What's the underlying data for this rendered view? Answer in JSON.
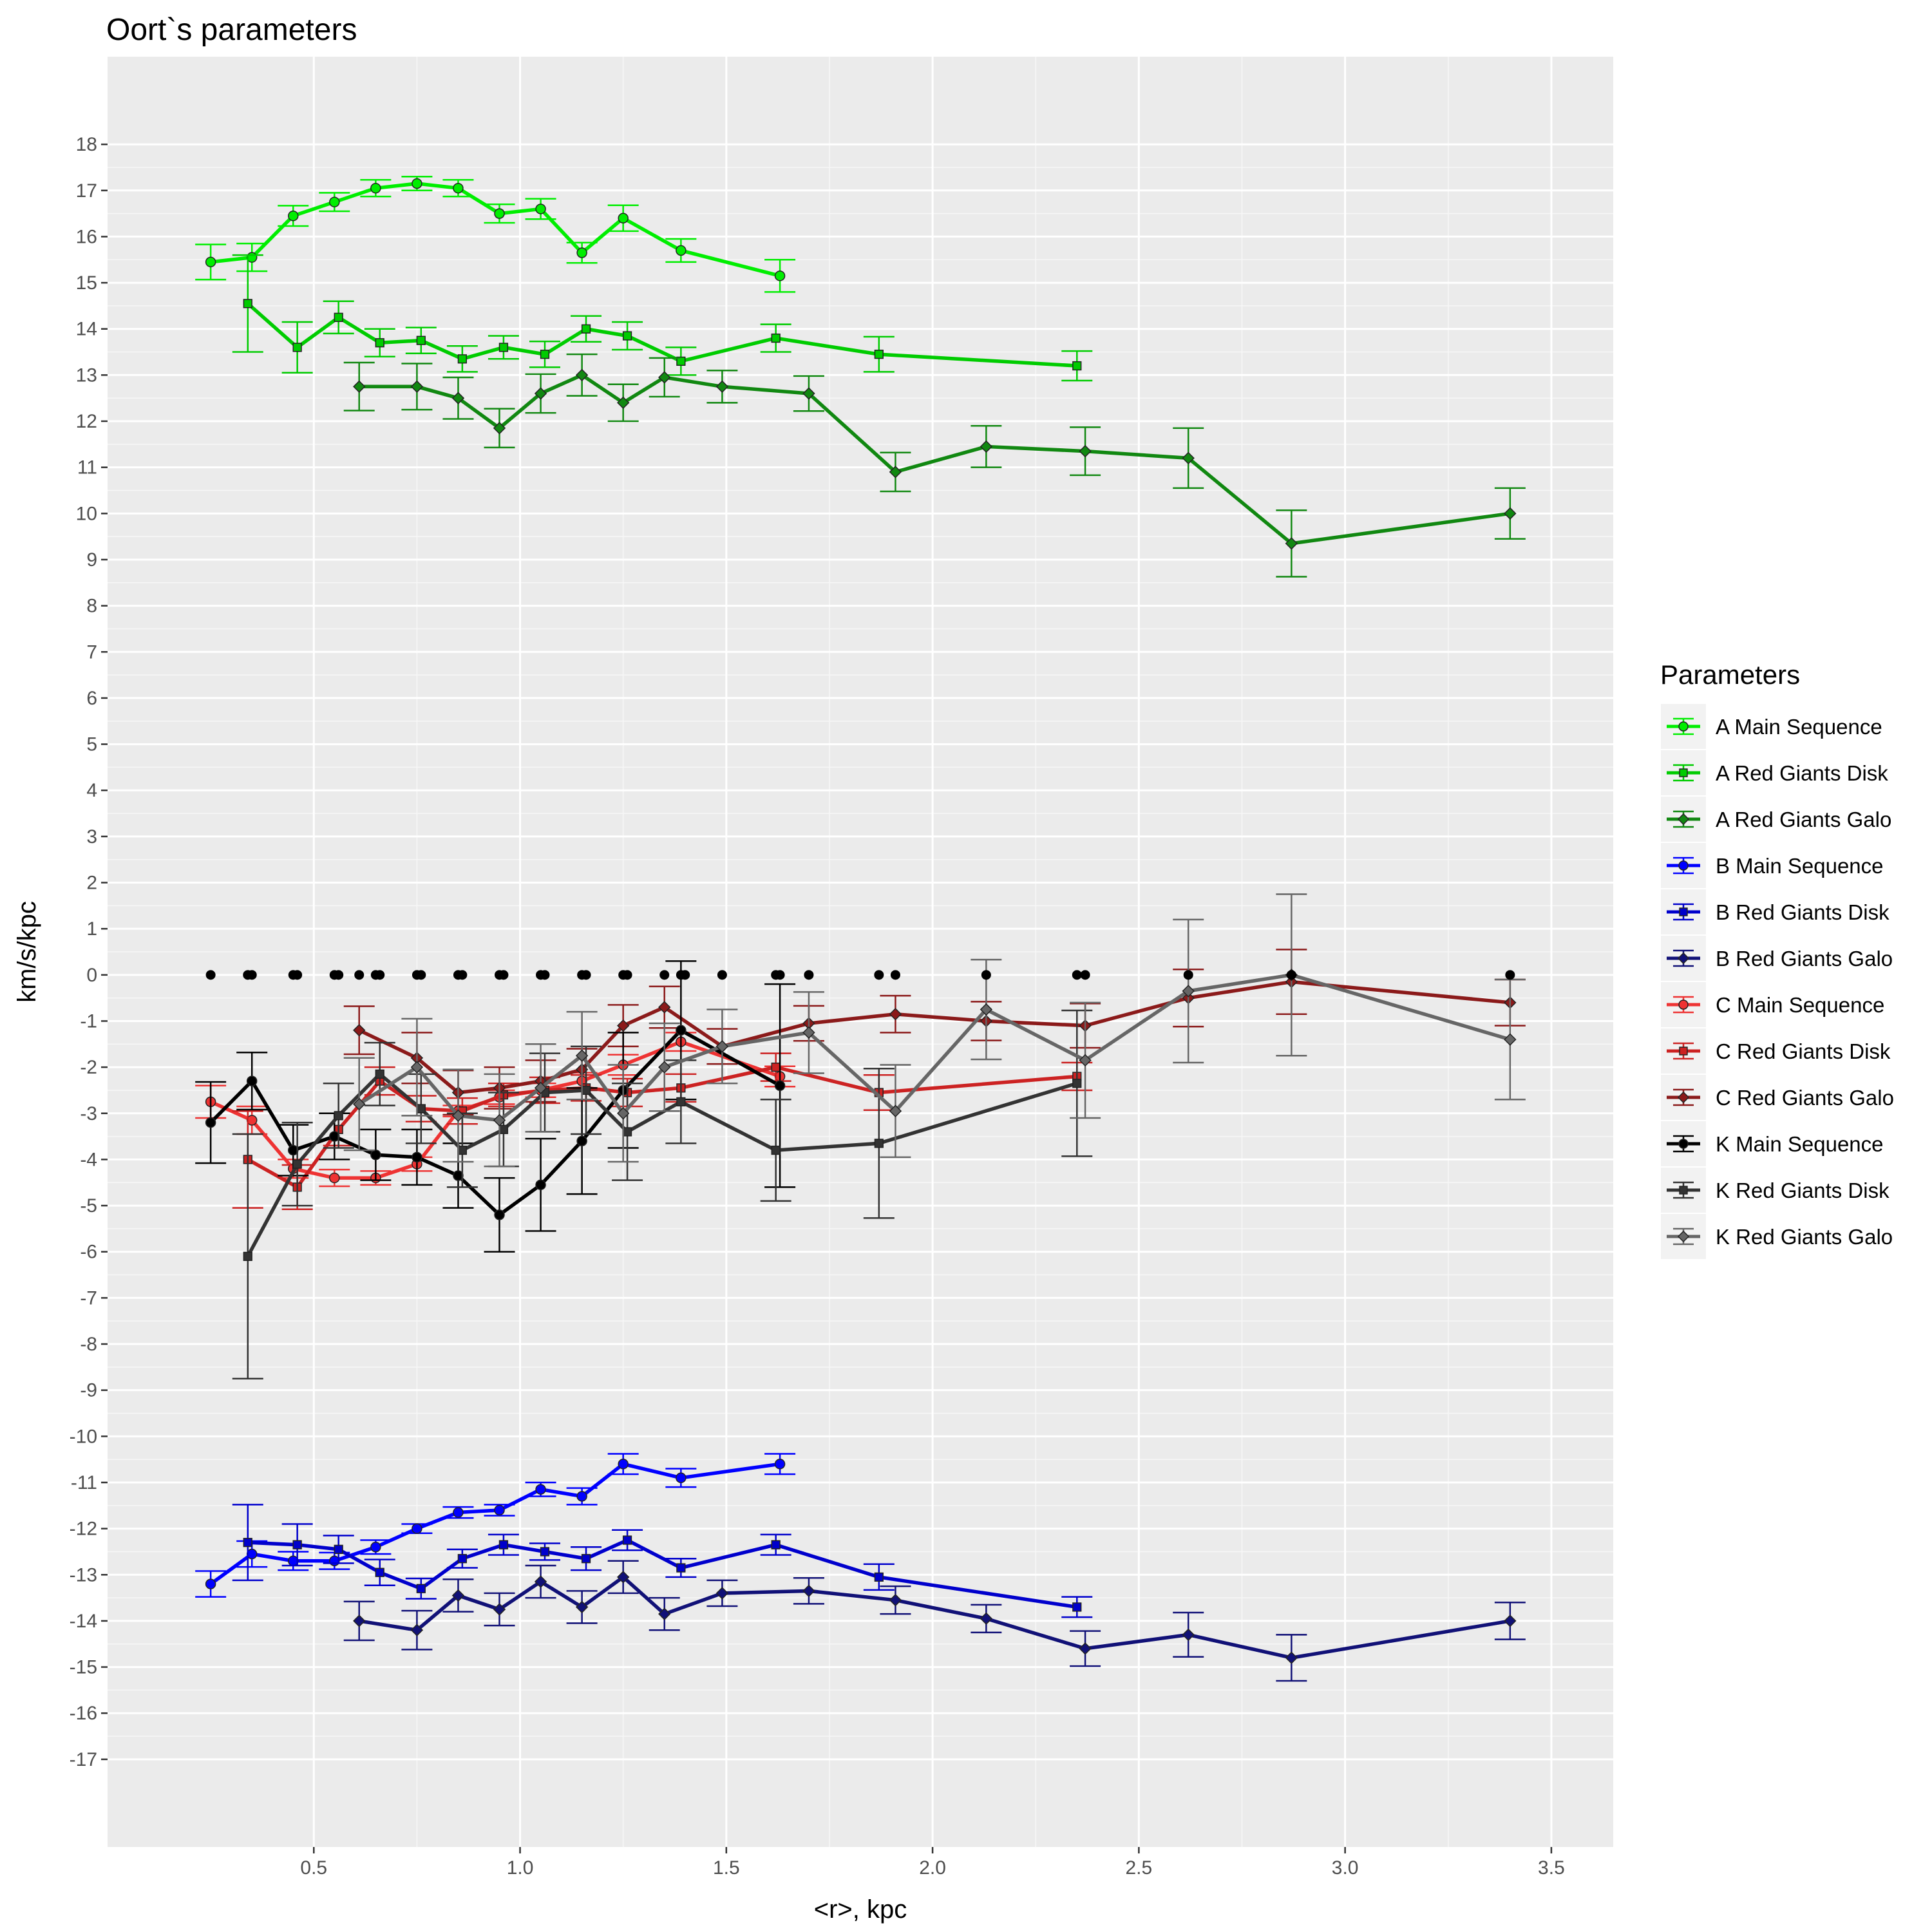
{
  "chart_data": {
    "type": "line",
    "title": "Oort`s parameters",
    "xlabel": "<r>, kpc",
    "ylabel": "km/s/kpc",
    "xlim": [
      0.0,
      3.65
    ],
    "ylim": [
      -18.9,
      19.9
    ],
    "x_ticks": [
      0.5,
      1.0,
      1.5,
      2.0,
      2.5,
      3.0,
      3.5
    ],
    "x_tick_labels": [
      "0.5",
      "1.0",
      "1.5",
      "2.0",
      "2.5",
      "3.0",
      "3.5"
    ],
    "y_ticks": [
      -17,
      -16,
      -15,
      -14,
      -13,
      -12,
      -11,
      -10,
      -9,
      -8,
      -7,
      -6,
      -5,
      -4,
      -3,
      -2,
      -1,
      0,
      1,
      2,
      3,
      4,
      5,
      6,
      7,
      8,
      9,
      10,
      11,
      12,
      13,
      14,
      15,
      16,
      17,
      18
    ],
    "y_tick_labels": [
      "-17",
      "-16",
      "-15",
      "-14",
      "-13",
      "-12",
      "-11",
      "-10",
      "-9",
      "-8",
      "-7",
      "-6",
      "-5",
      "-4",
      "-3",
      "-2",
      "-1",
      "0",
      "1",
      "2",
      "3",
      "4",
      "5",
      "6",
      "7",
      "8",
      "9",
      "10",
      "11",
      "12",
      "13",
      "14",
      "15",
      "16",
      "17",
      "18"
    ],
    "grid": true,
    "legend": {
      "title": "Parameters",
      "position": "right"
    },
    "series": [
      {
        "name": "A Main Sequence",
        "color": "#00ee00",
        "marker": "circle",
        "x": [
          0.25,
          0.35,
          0.45,
          0.55,
          0.65,
          0.75,
          0.85,
          0.95,
          1.05,
          1.15,
          1.25,
          1.39,
          1.63
        ],
        "y": [
          15.45,
          15.55,
          16.45,
          16.75,
          17.05,
          17.15,
          17.05,
          16.5,
          16.6,
          15.65,
          16.4,
          15.7,
          15.15
        ],
        "err": [
          0.38,
          0.3,
          0.22,
          0.2,
          0.18,
          0.15,
          0.18,
          0.2,
          0.22,
          0.22,
          0.28,
          0.25,
          0.35
        ]
      },
      {
        "name": "A Red Giants Disk",
        "color": "#00cc00",
        "marker": "square",
        "x": [
          0.34,
          0.46,
          0.56,
          0.66,
          0.76,
          0.86,
          0.96,
          1.06,
          1.16,
          1.26,
          1.39,
          1.62,
          1.87,
          2.35
        ],
        "y": [
          14.55,
          13.6,
          14.25,
          13.7,
          13.75,
          13.35,
          13.6,
          13.45,
          14.0,
          13.85,
          13.3,
          13.8,
          13.45,
          13.2
        ],
        "err": [
          1.05,
          0.55,
          0.35,
          0.3,
          0.28,
          0.28,
          0.25,
          0.28,
          0.28,
          0.3,
          0.3,
          0.3,
          0.38,
          0.32
        ]
      },
      {
        "name": "A Red Giants Galo",
        "color": "#118811",
        "marker": "diamond",
        "x": [
          0.61,
          0.75,
          0.85,
          0.95,
          1.05,
          1.15,
          1.25,
          1.35,
          1.49,
          1.7,
          1.91,
          2.13,
          2.37,
          2.62,
          2.87,
          3.4
        ],
        "y": [
          12.75,
          12.75,
          12.5,
          11.85,
          12.6,
          13.0,
          12.4,
          12.95,
          12.75,
          12.6,
          10.9,
          11.45,
          11.35,
          11.2,
          9.35,
          10.0
        ],
        "err": [
          0.52,
          0.5,
          0.45,
          0.42,
          0.42,
          0.45,
          0.4,
          0.42,
          0.35,
          0.38,
          0.42,
          0.45,
          0.52,
          0.65,
          0.72,
          0.55
        ]
      },
      {
        "name": "B Main Sequence",
        "color": "#0000ff",
        "marker": "circle",
        "x": [
          0.25,
          0.35,
          0.45,
          0.55,
          0.65,
          0.75,
          0.85,
          0.95,
          1.05,
          1.15,
          1.25,
          1.39,
          1.63
        ],
        "y": [
          -13.2,
          -12.55,
          -12.7,
          -12.7,
          -12.4,
          -12.0,
          -11.65,
          -11.6,
          -11.15,
          -11.3,
          -10.6,
          -10.9,
          -10.6
        ],
        "err": [
          0.28,
          0.28,
          0.2,
          0.18,
          0.15,
          0.1,
          0.12,
          0.12,
          0.15,
          0.18,
          0.22,
          0.2,
          0.22
        ]
      },
      {
        "name": "B Red Giants Disk",
        "color": "#0000cc",
        "marker": "square",
        "x": [
          0.34,
          0.46,
          0.56,
          0.66,
          0.76,
          0.86,
          0.96,
          1.06,
          1.16,
          1.26,
          1.39,
          1.62,
          1.87,
          2.35
        ],
        "y": [
          -12.3,
          -12.35,
          -12.45,
          -12.95,
          -13.3,
          -12.65,
          -12.35,
          -12.5,
          -12.65,
          -12.25,
          -12.85,
          -12.35,
          -13.05,
          -13.7
        ],
        "err": [
          0.82,
          0.45,
          0.3,
          0.28,
          0.22,
          0.2,
          0.22,
          0.18,
          0.25,
          0.22,
          0.2,
          0.22,
          0.28,
          0.22
        ]
      },
      {
        "name": "B Red Giants Galo",
        "color": "#111177",
        "marker": "diamond",
        "x": [
          0.61,
          0.75,
          0.85,
          0.95,
          1.05,
          1.15,
          1.25,
          1.35,
          1.49,
          1.7,
          1.91,
          2.13,
          2.37,
          2.62,
          2.87,
          3.4
        ],
        "y": [
          -14.0,
          -14.2,
          -13.45,
          -13.75,
          -13.15,
          -13.7,
          -13.05,
          -13.85,
          -13.4,
          -13.35,
          -13.55,
          -13.95,
          -14.6,
          -14.3,
          -14.8,
          -14.0
        ],
        "err": [
          0.42,
          0.42,
          0.35,
          0.35,
          0.35,
          0.35,
          0.35,
          0.35,
          0.28,
          0.28,
          0.3,
          0.3,
          0.38,
          0.48,
          0.5,
          0.4
        ]
      },
      {
        "name": "C Main Sequence",
        "color": "#ee3333",
        "marker": "circle",
        "x": [
          0.25,
          0.35,
          0.45,
          0.55,
          0.65,
          0.75,
          0.85,
          0.95,
          1.05,
          1.15,
          1.25,
          1.39,
          1.63
        ],
        "y": [
          -2.75,
          -3.15,
          -4.2,
          -4.4,
          -4.4,
          -4.1,
          -2.95,
          -2.65,
          -2.5,
          -2.3,
          -1.95,
          -1.45,
          -2.2
        ],
        "err": [
          0.35,
          0.3,
          0.2,
          0.18,
          0.15,
          0.15,
          0.12,
          0.15,
          0.15,
          0.18,
          0.22,
          0.2,
          0.22
        ]
      },
      {
        "name": "C Red Giants Disk",
        "color": "#cc2222",
        "marker": "square",
        "x": [
          0.34,
          0.46,
          0.56,
          0.66,
          0.76,
          0.86,
          0.96,
          1.06,
          1.16,
          1.26,
          1.39,
          1.62,
          1.87,
          2.35
        ],
        "y": [
          -4.0,
          -4.6,
          -3.35,
          -2.3,
          -2.9,
          -2.95,
          -2.6,
          -2.5,
          -2.45,
          -2.55,
          -2.45,
          -2.0,
          -2.55,
          -2.2
        ],
        "err": [
          1.05,
          0.48,
          0.35,
          0.3,
          0.28,
          0.28,
          0.25,
          0.28,
          0.28,
          0.3,
          0.3,
          0.3,
          0.38,
          0.3
        ]
      },
      {
        "name": "C Red Giants Galo",
        "color": "#8b1a1a",
        "marker": "diamond",
        "x": [
          0.61,
          0.75,
          0.85,
          0.95,
          1.05,
          1.15,
          1.25,
          1.35,
          1.49,
          1.7,
          1.91,
          2.13,
          2.37,
          2.62,
          2.87,
          3.4
        ],
        "y": [
          -1.2,
          -1.8,
          -2.55,
          -2.45,
          -2.3,
          -2.05,
          -1.1,
          -0.7,
          -1.55,
          -1.05,
          -0.85,
          -1.0,
          -1.1,
          -0.5,
          -0.15,
          -0.6
        ],
        "err": [
          0.52,
          0.55,
          0.48,
          0.45,
          0.45,
          0.45,
          0.45,
          0.45,
          0.38,
          0.38,
          0.4,
          0.42,
          0.48,
          0.62,
          0.7,
          0.5
        ]
      },
      {
        "name": "K Main Sequence",
        "color": "#000000",
        "marker": "circle",
        "x": [
          0.25,
          0.35,
          0.45,
          0.55,
          0.65,
          0.75,
          0.85,
          0.95,
          1.05,
          1.15,
          1.25,
          1.39,
          1.63
        ],
        "y": [
          -3.2,
          -2.3,
          -3.8,
          -3.5,
          -3.9,
          -3.95,
          -4.35,
          -5.2,
          -4.55,
          -3.6,
          -2.5,
          -1.2,
          -2.4
        ],
        "err": [
          0.88,
          0.62,
          0.55,
          0.5,
          0.55,
          0.6,
          0.7,
          0.8,
          1.0,
          1.15,
          1.25,
          1.5,
          2.2
        ]
      },
      {
        "name": "K Red Giants Disk",
        "color": "#333333",
        "marker": "square",
        "x": [
          0.34,
          0.46,
          0.56,
          0.66,
          0.76,
          0.86,
          0.96,
          1.06,
          1.16,
          1.26,
          1.39,
          1.62,
          1.87,
          2.35
        ],
        "y": [
          -6.1,
          -4.1,
          -3.05,
          -2.15,
          -2.9,
          -3.8,
          -3.35,
          -2.55,
          -2.5,
          -3.4,
          -2.75,
          -3.8,
          -3.65,
          -2.35
        ],
        "err": [
          2.65,
          0.9,
          0.7,
          0.68,
          0.75,
          0.8,
          0.8,
          0.85,
          0.95,
          1.05,
          0.9,
          1.1,
          1.62,
          1.58
        ]
      },
      {
        "name": "K Red Giants Galo",
        "color": "#666666",
        "marker": "diamond",
        "x": [
          0.61,
          0.75,
          0.85,
          0.95,
          1.05,
          1.15,
          1.25,
          1.35,
          1.49,
          1.7,
          1.91,
          2.13,
          2.37,
          2.62,
          2.87,
          3.4
        ],
        "y": [
          -2.8,
          -2.0,
          -3.05,
          -3.15,
          -2.45,
          -1.75,
          -3.0,
          -2.0,
          -1.55,
          -1.25,
          -2.95,
          -0.75,
          -1.85,
          -0.35,
          0.0,
          -1.4
        ],
        "err": [
          1.0,
          1.05,
          1.0,
          1.0,
          0.95,
          0.95,
          1.05,
          0.95,
          0.8,
          0.88,
          1.0,
          1.08,
          1.25,
          1.55,
          1.75,
          1.3
        ]
      }
    ],
    "zero_points": {
      "color": "#000000",
      "x": [
        0.25,
        0.34,
        0.35,
        0.45,
        0.46,
        0.55,
        0.56,
        0.61,
        0.65,
        0.66,
        0.75,
        0.76,
        0.85,
        0.86,
        0.95,
        0.96,
        1.05,
        1.06,
        1.15,
        1.16,
        1.25,
        1.26,
        1.35,
        1.39,
        1.4,
        1.49,
        1.62,
        1.63,
        1.7,
        1.87,
        1.91,
        2.13,
        2.35,
        2.37,
        2.62,
        2.87,
        3.4
      ],
      "y": [
        0,
        0,
        0,
        0,
        0,
        0,
        0,
        0,
        0,
        0,
        0,
        0,
        0,
        0,
        0,
        0,
        0,
        0,
        0,
        0,
        0,
        0,
        0,
        0,
        0,
        0,
        0,
        0,
        0,
        0,
        0,
        0,
        0,
        0,
        0,
        0,
        0
      ]
    }
  }
}
